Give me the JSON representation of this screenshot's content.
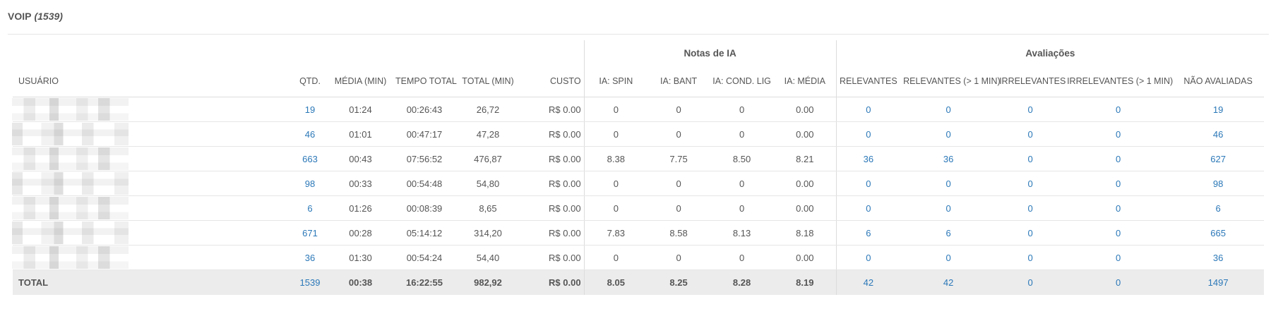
{
  "panel": {
    "title": "VOIP",
    "count": "(1539)"
  },
  "groups": {
    "ia": "Notas de IA",
    "avaliacoes": "Avaliações"
  },
  "columns": [
    "USUÁRIO",
    "QTD.",
    "MÉDIA (MIN)",
    "TEMPO TOTAL",
    "TOTAL (MIN)",
    "CUSTO",
    "IA: SPIN",
    "IA: BANT",
    "IA: COND. LIG",
    "IA: MÉDIA",
    "RELEVANTES",
    "RELEVANTES (> 1 MIN)",
    "IRRELEVANTES",
    "IRRELEVANTES (> 1 MIN)",
    "NÃO AVALIADAS"
  ],
  "rows": [
    {
      "qtd": "19",
      "media": "01:24",
      "tempo": "00:26:43",
      "total_min": "26,72",
      "custo": "R$ 0.00",
      "spin": "0",
      "bant": "0",
      "cond": "0",
      "ia_media": "0.00",
      "rel": "0",
      "rel1": "0",
      "irr": "0",
      "irr1": "0",
      "nao": "19"
    },
    {
      "qtd": "46",
      "media": "01:01",
      "tempo": "00:47:17",
      "total_min": "47,28",
      "custo": "R$ 0.00",
      "spin": "0",
      "bant": "0",
      "cond": "0",
      "ia_media": "0.00",
      "rel": "0",
      "rel1": "0",
      "irr": "0",
      "irr1": "0",
      "nao": "46"
    },
    {
      "qtd": "663",
      "media": "00:43",
      "tempo": "07:56:52",
      "total_min": "476,87",
      "custo": "R$ 0.00",
      "spin": "8.38",
      "bant": "7.75",
      "cond": "8.50",
      "ia_media": "8.21",
      "rel": "36",
      "rel1": "36",
      "irr": "0",
      "irr1": "0",
      "nao": "627"
    },
    {
      "qtd": "98",
      "media": "00:33",
      "tempo": "00:54:48",
      "total_min": "54,80",
      "custo": "R$ 0.00",
      "spin": "0",
      "bant": "0",
      "cond": "0",
      "ia_media": "0.00",
      "rel": "0",
      "rel1": "0",
      "irr": "0",
      "irr1": "0",
      "nao": "98"
    },
    {
      "qtd": "6",
      "media": "01:26",
      "tempo": "00:08:39",
      "total_min": "8,65",
      "custo": "R$ 0.00",
      "spin": "0",
      "bant": "0",
      "cond": "0",
      "ia_media": "0.00",
      "rel": "0",
      "rel1": "0",
      "irr": "0",
      "irr1": "0",
      "nao": "6"
    },
    {
      "qtd": "671",
      "media": "00:28",
      "tempo": "05:14:12",
      "total_min": "314,20",
      "custo": "R$ 0.00",
      "spin": "7.83",
      "bant": "8.58",
      "cond": "8.13",
      "ia_media": "8.18",
      "rel": "6",
      "rel1": "6",
      "irr": "0",
      "irr1": "0",
      "nao": "665"
    },
    {
      "qtd": "36",
      "media": "01:30",
      "tempo": "00:54:24",
      "total_min": "54,40",
      "custo": "R$ 0.00",
      "spin": "0",
      "bant": "0",
      "cond": "0",
      "ia_media": "0.00",
      "rel": "0",
      "rel1": "0",
      "irr": "0",
      "irr1": "0",
      "nao": "36"
    }
  ],
  "total": {
    "label": "TOTAL",
    "qtd": "1539",
    "media": "00:38",
    "tempo": "16:22:55",
    "total_min": "982,92",
    "custo": "R$ 0.00",
    "spin": "8.05",
    "bant": "8.25",
    "cond": "8.28",
    "ia_media": "8.19",
    "rel": "42",
    "rel1": "42",
    "irr": "0",
    "irr1": "0",
    "nao": "1497"
  }
}
